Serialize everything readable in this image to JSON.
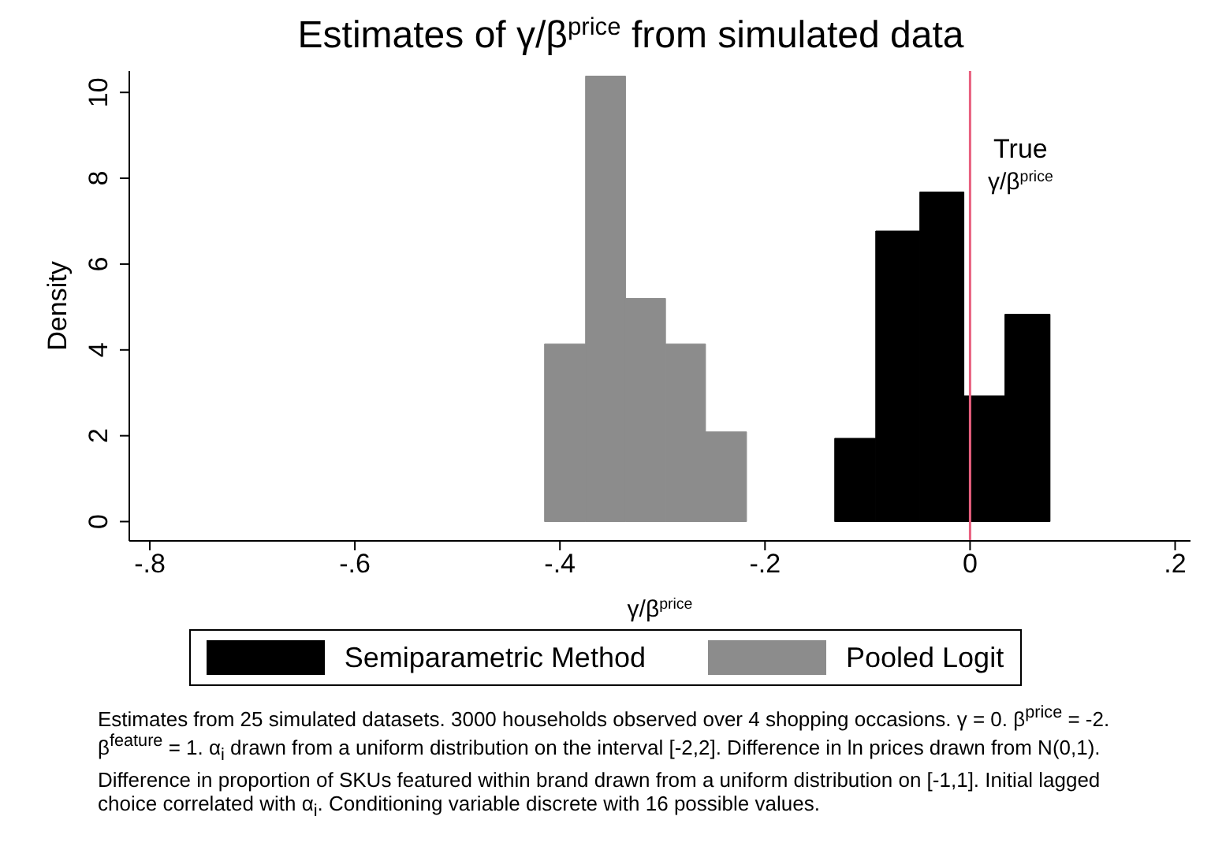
{
  "chart_data": {
    "type": "histogram",
    "title": "Estimates of γ/β$^{price}$ from simulated data",
    "xlabel": "γ/β$^{price}$",
    "ylabel": "Density",
    "bins": [
      -0.415,
      -0.375,
      -0.336,
      -0.297,
      -0.258,
      -0.218,
      -0.132,
      -0.092,
      -0.049,
      -0.006,
      0.034,
      0.078
    ],
    "series": [
      {
        "name": "Semiparametric Method",
        "color": "#000000",
        "values": [
          null,
          null,
          null,
          null,
          null,
          null,
          1.94,
          6.77,
          7.68,
          2.93,
          4.83
        ]
      },
      {
        "name": "Pooled Logit",
        "color": "#8c8c8c",
        "values": [
          4.14,
          10.38,
          5.2,
          4.14,
          2.09,
          null,
          null,
          null,
          null,
          null,
          null
        ]
      }
    ],
    "xlim": [
      -0.82,
      0.215
    ],
    "xticks": [
      {
        "value": -0.8,
        "label": "-.8"
      },
      {
        "value": -0.6,
        "label": "-.6"
      },
      {
        "value": -0.4,
        "label": "-.4"
      },
      {
        "value": -0.2,
        "label": "-.2"
      },
      0,
      {
        "value": 0.2,
        "label": ".2"
      }
    ],
    "ylim": [
      -0.45,
      10.5
    ],
    "yticks": [
      0,
      2,
      4,
      6,
      8,
      10
    ],
    "ref_lines": [
      {
        "axis": "x",
        "value": 0,
        "label": "True γ/β$^{price}$",
        "color": "#e8607f"
      }
    ],
    "legend": "bottom",
    "grid": false,
    "annotations": [
      "Estimates from 25 simulated datasets. 3000 households observed over 4 shopping occasions. γ = 0. β$^{price}$ = -2. β$^{feature}$ = 1. α$_{i}$ drawn from a uniform distribution on the interval [-2,2]. Difference in ln prices drawn from N(0,1). Difference in proportion of SKUs featured within brand drawn from a uniform distribution on [-1,1]. Initial lagged choice correlated with α$_{i}$. Conditioning variable discrete with 16 possible values."
    ]
  }
}
